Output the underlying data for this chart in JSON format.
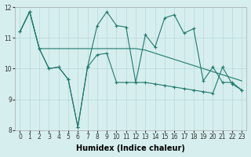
{
  "line1_x": [
    0,
    1,
    2,
    3,
    4,
    5,
    6,
    7,
    8,
    9,
    10,
    11,
    12,
    13,
    14,
    15,
    16,
    17,
    18,
    19,
    20,
    21,
    22,
    23
  ],
  "line1_y": [
    11.2,
    11.85,
    10.65,
    10.65,
    10.65,
    10.65,
    10.65,
    10.65,
    10.65,
    10.65,
    10.65,
    10.65,
    10.65,
    10.6,
    10.5,
    10.4,
    10.3,
    10.2,
    10.1,
    10.0,
    9.9,
    9.8,
    9.7,
    9.6
  ],
  "line2_x": [
    0,
    1,
    2,
    3,
    4,
    5,
    6,
    7,
    8,
    9,
    10,
    11,
    12,
    13,
    14,
    15,
    16,
    17,
    18,
    19,
    20,
    21,
    22,
    23
  ],
  "line2_y": [
    11.2,
    11.85,
    10.65,
    10.0,
    10.05,
    9.65,
    8.1,
    10.05,
    11.4,
    11.85,
    11.4,
    11.35,
    9.55,
    11.1,
    10.7,
    11.65,
    11.75,
    11.15,
    11.3,
    9.6,
    10.05,
    9.55,
    9.55,
    9.3
  ],
  "line3_x": [
    0,
    1,
    2,
    3,
    4,
    5,
    6,
    7,
    8,
    9,
    10,
    11,
    12,
    13,
    14,
    15,
    16,
    17,
    18,
    19,
    20,
    21,
    22,
    23
  ],
  "line3_y": [
    11.2,
    11.85,
    10.65,
    10.0,
    10.05,
    9.65,
    8.1,
    10.05,
    10.45,
    10.5,
    9.55,
    9.55,
    9.55,
    9.55,
    9.5,
    9.45,
    9.4,
    9.35,
    9.3,
    9.25,
    9.2,
    10.05,
    9.5,
    9.3
  ],
  "color": "#217a6e",
  "bg_color": "#d6eeee",
  "grid_color": "#b8d8d8",
  "xlabel": "Humidex (Indice chaleur)",
  "xlim": [
    -0.5,
    23.5
  ],
  "ylim": [
    8,
    12
  ],
  "yticks": [
    8,
    9,
    10,
    11,
    12
  ],
  "xticks": [
    0,
    1,
    2,
    3,
    4,
    5,
    6,
    7,
    8,
    9,
    10,
    11,
    12,
    13,
    14,
    15,
    16,
    17,
    18,
    19,
    20,
    21,
    22,
    23
  ],
  "xlabel_fontsize": 7,
  "tick_fontsize": 5.5,
  "linewidth": 0.8,
  "markersize": 3
}
